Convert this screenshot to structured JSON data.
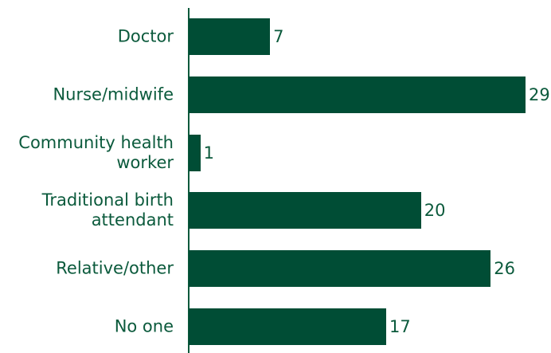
{
  "chart_data": {
    "type": "bar",
    "orientation": "horizontal",
    "categories": [
      "Doctor",
      "Nurse/midwife",
      "Community health worker",
      "Traditional birth attendant",
      "Relative/other",
      "No one"
    ],
    "values": [
      7,
      29,
      1,
      20,
      26,
      17
    ],
    "color": "#004d35"
  }
}
